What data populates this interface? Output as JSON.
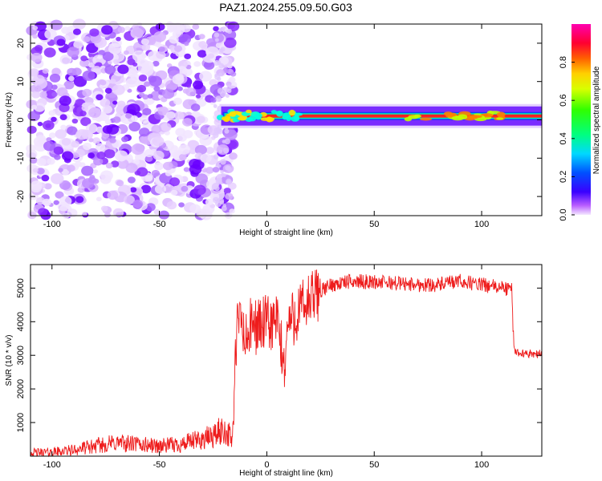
{
  "title": "PAZ1.2024.255.09.50.G03",
  "chart_data": [
    {
      "type": "heatmap",
      "xlabel": "Height of straight line (km)",
      "ylabel": "Frequency (Hz)",
      "xlim": [
        -110,
        128
      ],
      "ylim": [
        -25,
        25
      ],
      "xticks": [
        -100,
        -50,
        0,
        50,
        100
      ],
      "yticks": [
        -20,
        -10,
        0,
        10,
        20
      ],
      "colorbar": {
        "label": "Normalized spectral amplitude",
        "range": [
          0,
          1
        ],
        "ticks": [
          "0.0",
          "0.2",
          "0.4",
          "0.6",
          "0.8"
        ],
        "tick_values": [
          0,
          0.2,
          0.4,
          0.6,
          0.8
        ],
        "colormap": "gist_ncar_like"
      },
      "description_values": {
        "noise_region_x": [
          -110,
          -20
        ],
        "signal_start_x": -22,
        "signal_center_freq_hz": 1,
        "signal_band_halfwidth_hz": 1
      }
    },
    {
      "type": "line",
      "xlabel": "Height of straight line (km)",
      "ylabel": "SNR (10 * v/v)",
      "xlim": [
        -110,
        128
      ],
      "ylim": [
        0,
        5700
      ],
      "xticks": [
        -100,
        -50,
        0,
        50,
        100
      ],
      "yticks": [
        1000,
        2000,
        3000,
        4000,
        5000
      ],
      "series": [
        {
          "color": "#ff0000",
          "x": [
            -110,
            -100,
            -90,
            -80,
            -70,
            -60,
            -50,
            -40,
            -30,
            -25,
            -20,
            -16,
            -15,
            -14,
            -12,
            -10,
            -8,
            -5,
            0,
            5,
            8,
            10,
            12,
            15,
            20,
            25,
            30,
            35,
            40,
            50,
            60,
            70,
            80,
            90,
            100,
            110,
            114,
            115,
            116,
            120,
            128
          ],
          "y": [
            100,
            120,
            180,
            300,
            400,
            350,
            300,
            350,
            500,
            600,
            800,
            500,
            2000,
            3800,
            4100,
            3300,
            3800,
            3900,
            3900,
            4000,
            2600,
            4000,
            4100,
            4300,
            4600,
            4900,
            5100,
            5150,
            5200,
            5180,
            5150,
            5100,
            5100,
            5200,
            5100,
            5000,
            4950,
            3200,
            3100,
            3050,
            3050
          ]
        }
      ]
    }
  ]
}
